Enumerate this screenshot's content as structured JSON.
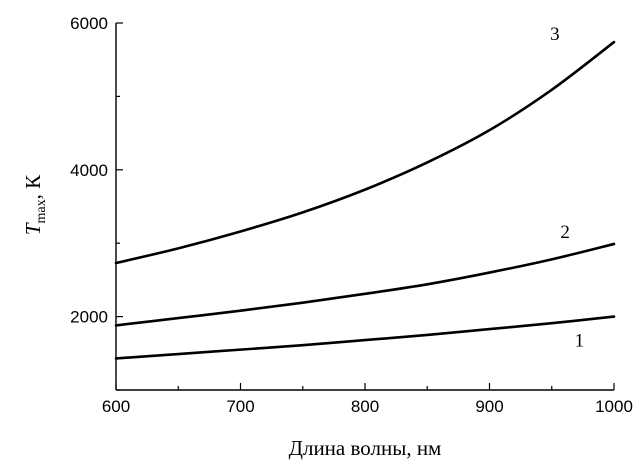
{
  "chart_data": {
    "type": "line",
    "xlabel": "Длина волны,  нм",
    "ylabel_main": "T",
    "ylabel_sub": "max",
    "ylabel_unit": ",  К",
    "xlim": [
      600,
      1000
    ],
    "ylim": [
      1000,
      6000
    ],
    "xticks": [
      600,
      700,
      800,
      900,
      1000
    ],
    "xtick_labels": [
      "600",
      "700",
      "800",
      "900",
      "1000"
    ],
    "yticks": [
      2000,
      4000,
      6000
    ],
    "ytick_labels": [
      "2000",
      "4000",
      "6000"
    ],
    "grid": false,
    "x": [
      600,
      650,
      700,
      750,
      800,
      850,
      900,
      950,
      1000
    ],
    "series": [
      {
        "name": "1",
        "values": [
          1430,
          1490,
          1550,
          1610,
          1680,
          1750,
          1830,
          1910,
          2000
        ]
      },
      {
        "name": "2",
        "values": [
          1880,
          1980,
          2080,
          2190,
          2310,
          2440,
          2600,
          2780,
          2990
        ]
      },
      {
        "name": "3",
        "values": [
          2730,
          2930,
          3160,
          3420,
          3730,
          4100,
          4540,
          5090,
          5740
        ]
      }
    ]
  }
}
